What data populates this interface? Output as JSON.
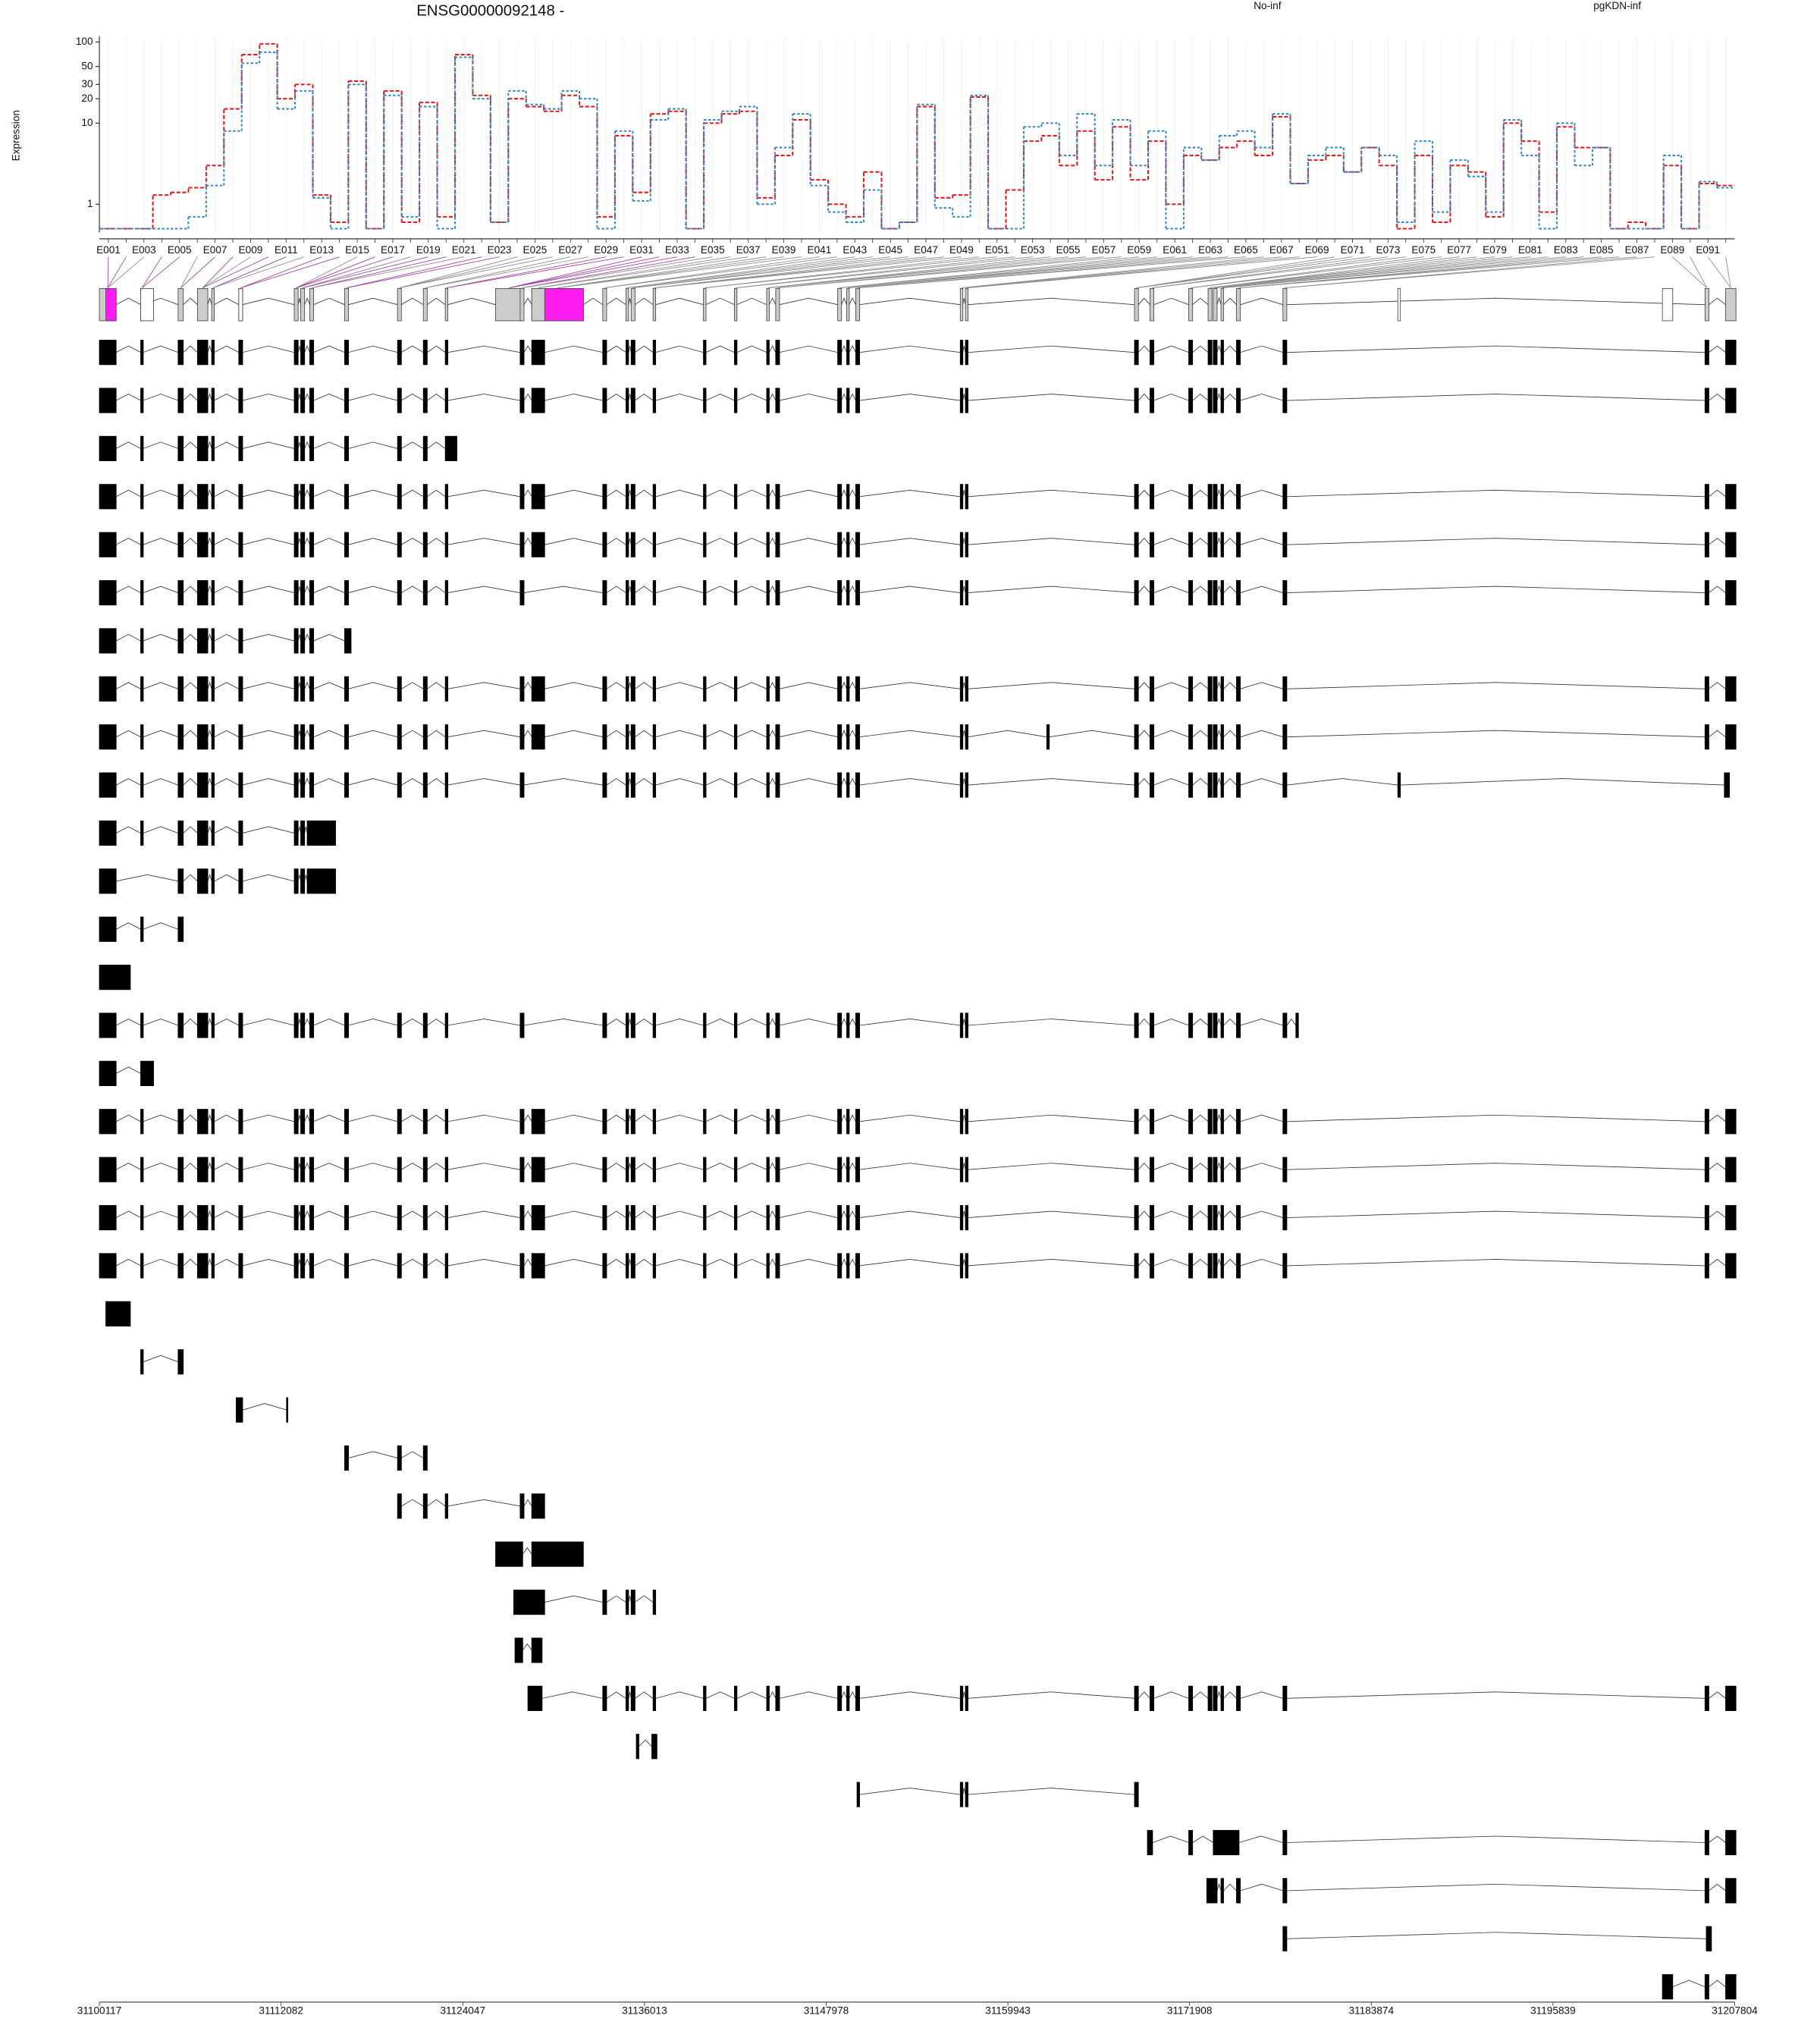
{
  "chart_data": [
    {
      "type": "line",
      "title": "ENSG00000092148 -",
      "ylabel": "Expression",
      "yscale": "log",
      "ylim": [
        0.45,
        110
      ],
      "yticks": [
        1,
        10,
        20,
        30,
        50,
        100
      ],
      "categories": [
        "E001",
        null,
        "E003",
        null,
        "E005",
        null,
        "E007",
        null,
        "E009",
        null,
        "E011",
        null,
        "E013",
        null,
        "E015",
        null,
        "E017",
        null,
        "E019",
        null,
        "E021",
        null,
        "E023",
        null,
        "E025",
        null,
        "E027",
        null,
        "E029",
        null,
        "E031",
        null,
        "E033",
        null,
        "E035",
        null,
        "E037",
        null,
        "E039",
        null,
        "E041",
        null,
        "E043",
        null,
        "E045",
        null,
        "E047",
        null,
        "E049",
        null,
        "E051",
        null,
        "E053",
        null,
        "E055",
        null,
        "E057",
        null,
        "E059",
        null,
        "E061",
        null,
        "E063",
        null,
        "E065",
        null,
        "E067",
        null,
        "E069",
        null,
        "E071",
        null,
        "E073",
        null,
        "E075",
        null,
        "E077",
        null,
        "E079",
        null,
        "E081",
        null,
        "E083",
        null,
        "E085",
        null,
        "E087",
        null,
        "E089",
        null,
        "E091",
        null
      ],
      "series": [
        {
          "name": "No-inf",
          "color": "#e31a1c",
          "values": [
            0.5,
            0.5,
            0.5,
            1.3,
            1.4,
            1.6,
            3,
            15,
            70,
            95,
            20,
            30,
            1.3,
            0.6,
            33,
            0.5,
            25,
            0.6,
            18,
            0.7,
            70,
            22,
            0.6,
            20,
            16,
            14,
            22,
            16,
            0.7,
            7,
            1.4,
            13,
            14,
            0.5,
            10,
            13,
            14,
            1.2,
            4,
            11,
            2,
            1,
            0.7,
            2.5,
            0.5,
            0.6,
            16,
            1.2,
            1.3,
            21,
            0.5,
            1.5,
            6,
            7,
            3,
            8,
            2,
            9,
            2,
            6,
            1,
            4,
            3.5,
            5,
            6,
            4,
            12,
            1.8,
            3.5,
            4,
            2.5,
            5,
            3,
            0.5,
            4,
            0.6,
            3,
            2.5,
            0.7,
            10,
            6,
            0.8,
            9,
            5,
            5,
            0.5,
            0.6,
            0.5,
            3,
            0.5,
            1.8,
            1.7
          ]
        },
        {
          "name": "pgKDN-inf",
          "color": "#3a87c8",
          "values": [
            0.5,
            0.5,
            0.5,
            0.5,
            0.5,
            0.7,
            1.7,
            8,
            55,
            75,
            15,
            25,
            1.2,
            0.5,
            30,
            0.5,
            22,
            0.7,
            16,
            0.5,
            65,
            20,
            0.6,
            25,
            17,
            15,
            25,
            20,
            0.5,
            8,
            1.1,
            11,
            15,
            0.5,
            11,
            14,
            16,
            1,
            5,
            13,
            1.7,
            0.8,
            0.6,
            1.5,
            0.5,
            0.6,
            17,
            0.9,
            0.7,
            22,
            0.5,
            0.5,
            9,
            10,
            4,
            13,
            3,
            11,
            3,
            8,
            0.5,
            5,
            3.5,
            7,
            8,
            5,
            13,
            1.8,
            4,
            5,
            2.5,
            5,
            4,
            0.6,
            6,
            0.8,
            3.5,
            2.2,
            0.8,
            11,
            4,
            0.5,
            10,
            3,
            5,
            0.5,
            0.5,
            0.5,
            4,
            0.5,
            1.9,
            1.6
          ]
        }
      ]
    },
    {
      "type": "gene-model",
      "xlim": [
        31100117,
        31207804
      ],
      "xticks": [
        31100117,
        31112082,
        31124047,
        31136013,
        31147978,
        31159943,
        31171908,
        31183874,
        31195839,
        31207804
      ]
    }
  ]
}
